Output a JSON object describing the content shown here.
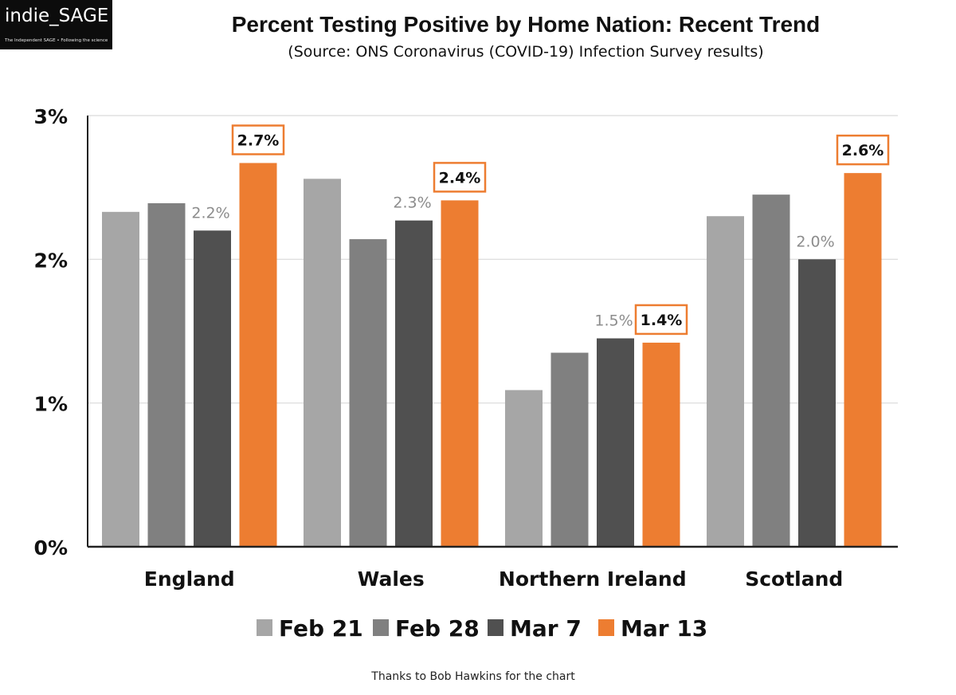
{
  "logo": {
    "name": "indie_SAGE",
    "tagline": "The Independent SAGE • Following the science"
  },
  "header": {
    "title": "Percent Testing Positive by Home Nation: Recent Trend",
    "subtitle": "(Source: ONS Coronavirus (COVID-19) Infection Survey results)"
  },
  "colors": {
    "feb21": "#a6a6a6",
    "feb28": "#808080",
    "mar7": "#505050",
    "mar13": "#ed7d31",
    "gridline": "#d9d9d9",
    "axis": "#222222",
    "secondary_label": "#8c8c8c"
  },
  "chart_data": {
    "type": "bar",
    "title": "Percent Testing Positive by Home Nation: Recent Trend",
    "xlabel": "",
    "ylabel": "",
    "ylim": [
      0,
      3
    ],
    "y_ticks": [
      "0%",
      "1%",
      "2%",
      "3%"
    ],
    "grid": true,
    "legend_position": "bottom",
    "categories": [
      "England",
      "Wales",
      "Northern Ireland",
      "Scotland"
    ],
    "series": [
      {
        "name": "Feb 21",
        "color_key": "feb21",
        "values": [
          2.33,
          2.56,
          1.09,
          2.3
        ]
      },
      {
        "name": "Feb 28",
        "color_key": "feb28",
        "values": [
          2.39,
          2.14,
          1.35,
          2.45
        ]
      },
      {
        "name": "Mar 7",
        "color_key": "mar7",
        "values": [
          2.2,
          2.27,
          1.45,
          2.0
        ]
      },
      {
        "name": "Mar 13",
        "color_key": "mar13",
        "values": [
          2.67,
          2.41,
          1.42,
          2.6
        ]
      }
    ],
    "annotations": [
      {
        "series": 2,
        "category": 0,
        "label": "2.2%",
        "style": "plain"
      },
      {
        "series": 3,
        "category": 0,
        "label": "2.7%",
        "style": "boxed"
      },
      {
        "series": 2,
        "category": 1,
        "label": "2.3%",
        "style": "plain"
      },
      {
        "series": 3,
        "category": 1,
        "label": "2.4%",
        "style": "boxed"
      },
      {
        "series": 2,
        "category": 2,
        "label": "1.5%",
        "style": "plain"
      },
      {
        "series": 3,
        "category": 2,
        "label": "1.4%",
        "style": "boxed"
      },
      {
        "series": 2,
        "category": 3,
        "label": "2.0%",
        "style": "plain"
      },
      {
        "series": 3,
        "category": 3,
        "label": "2.6%",
        "style": "boxed"
      }
    ]
  },
  "footer": {
    "credit": "Thanks to Bob Hawkins for the chart"
  }
}
